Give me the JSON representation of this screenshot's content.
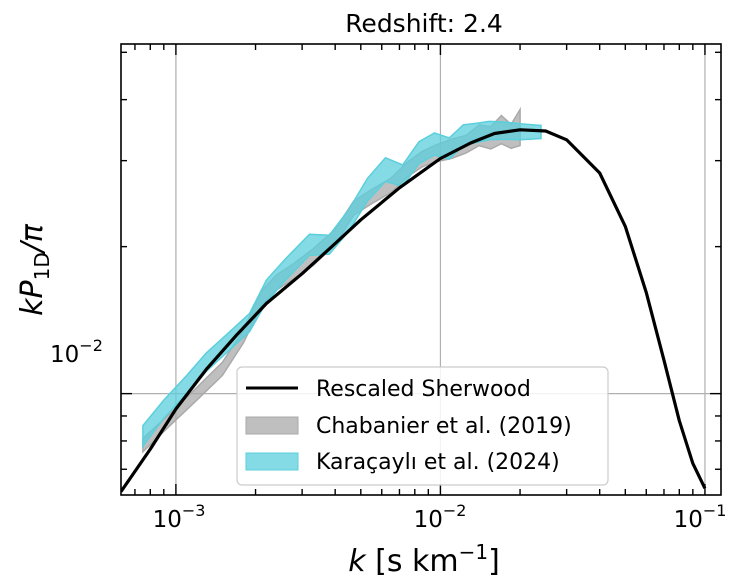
{
  "chart_data": {
    "type": "line",
    "title": "Redshift: 2.4",
    "xlabel": {
      "base": "k",
      "unit": "[s km",
      "sup": "−1",
      "close": "]"
    },
    "ylabel": {
      "k": "k",
      "P": "P",
      "sub": "1D",
      "rest": "/π"
    },
    "xscale": "log",
    "yscale": "log",
    "xlim": [
      0.00062,
      0.115
    ],
    "ylim": [
      0.0062,
      0.052
    ],
    "grid": true,
    "legend_position": "lower-center",
    "xticks": [
      {
        "value": 0.001,
        "base": "10",
        "exp": "−3"
      },
      {
        "value": 0.01,
        "base": "10",
        "exp": "−2"
      },
      {
        "value": 0.1,
        "base": "10",
        "exp": "−1"
      }
    ],
    "yticks": [
      {
        "value": 0.01,
        "base": "10",
        "exp": "−2"
      }
    ],
    "series": [
      {
        "name": "Rescaled Sherwood",
        "kind": "line",
        "color": "#000000",
        "x": [
          0.00062,
          0.0008,
          0.001,
          0.0013,
          0.0017,
          0.0022,
          0.003,
          0.004,
          0.005,
          0.007,
          0.01,
          0.013,
          0.016,
          0.02,
          0.025,
          0.03,
          0.04,
          0.05,
          0.06,
          0.07,
          0.08,
          0.09,
          0.1
        ],
        "y": [
          0.0063,
          0.0077,
          0.0093,
          0.0112,
          0.0132,
          0.0153,
          0.0176,
          0.0203,
          0.0227,
          0.0264,
          0.0303,
          0.0326,
          0.0341,
          0.0347,
          0.0345,
          0.0331,
          0.0283,
          0.022,
          0.0161,
          0.0117,
          0.0088,
          0.0072,
          0.0064
        ]
      },
      {
        "name": "Chabanier et al. (2019)",
        "kind": "band",
        "color": "#aaaaaa",
        "x": [
          0.00075,
          0.00095,
          0.0012,
          0.0015,
          0.0018,
          0.0021,
          0.0024,
          0.0028,
          0.0033,
          0.004,
          0.0047,
          0.0055,
          0.0065,
          0.0075,
          0.0085,
          0.0095,
          0.011,
          0.0125,
          0.014,
          0.0155,
          0.017,
          0.0185,
          0.02
        ],
        "low": [
          0.0076,
          0.0086,
          0.0097,
          0.0109,
          0.0127,
          0.0151,
          0.0163,
          0.0172,
          0.0183,
          0.0202,
          0.0232,
          0.0245,
          0.0258,
          0.0278,
          0.0291,
          0.0298,
          0.0303,
          0.0311,
          0.0322,
          0.0317,
          0.0325,
          0.0318,
          0.0322
        ],
        "high": [
          0.0081,
          0.0091,
          0.0103,
          0.0116,
          0.0135,
          0.0162,
          0.0175,
          0.0185,
          0.0198,
          0.0217,
          0.0248,
          0.0262,
          0.0276,
          0.0298,
          0.0313,
          0.0322,
          0.0332,
          0.0338,
          0.0355,
          0.0352,
          0.0371,
          0.0356,
          0.0382
        ]
      },
      {
        "name": "Karaçaylı et al. (2024)",
        "kind": "band",
        "color": "#5bcfdc",
        "x": [
          0.00075,
          0.0009,
          0.0011,
          0.0013,
          0.0016,
          0.0019,
          0.0022,
          0.0026,
          0.0032,
          0.0038,
          0.0045,
          0.0053,
          0.0062,
          0.0072,
          0.0083,
          0.0095,
          0.0108,
          0.0122,
          0.0137,
          0.0153,
          0.0175,
          0.02,
          0.024
        ],
        "low": [
          0.0078,
          0.0089,
          0.01,
          0.0111,
          0.0123,
          0.0134,
          0.0154,
          0.0171,
          0.0192,
          0.0193,
          0.0215,
          0.0248,
          0.0272,
          0.0266,
          0.0296,
          0.0308,
          0.0302,
          0.0322,
          0.0327,
          0.0331,
          0.0332,
          0.0331,
          0.0333
        ],
        "high": [
          0.0086,
          0.0097,
          0.0109,
          0.0121,
          0.0134,
          0.0146,
          0.0171,
          0.0189,
          0.0212,
          0.0211,
          0.0238,
          0.0276,
          0.0304,
          0.0294,
          0.0328,
          0.0342,
          0.0334,
          0.0355,
          0.0358,
          0.0361,
          0.036,
          0.0357,
          0.0354
        ]
      }
    ],
    "legend": [
      {
        "label": "Rescaled Sherwood",
        "kind": "line",
        "color": "#000000"
      },
      {
        "label": "Chabanier et al. (2019)",
        "kind": "band",
        "color": "#aaaaaa"
      },
      {
        "label": "Karaçaylı et al. (2024)",
        "kind": "band",
        "color": "#5bcfdc"
      }
    ]
  }
}
